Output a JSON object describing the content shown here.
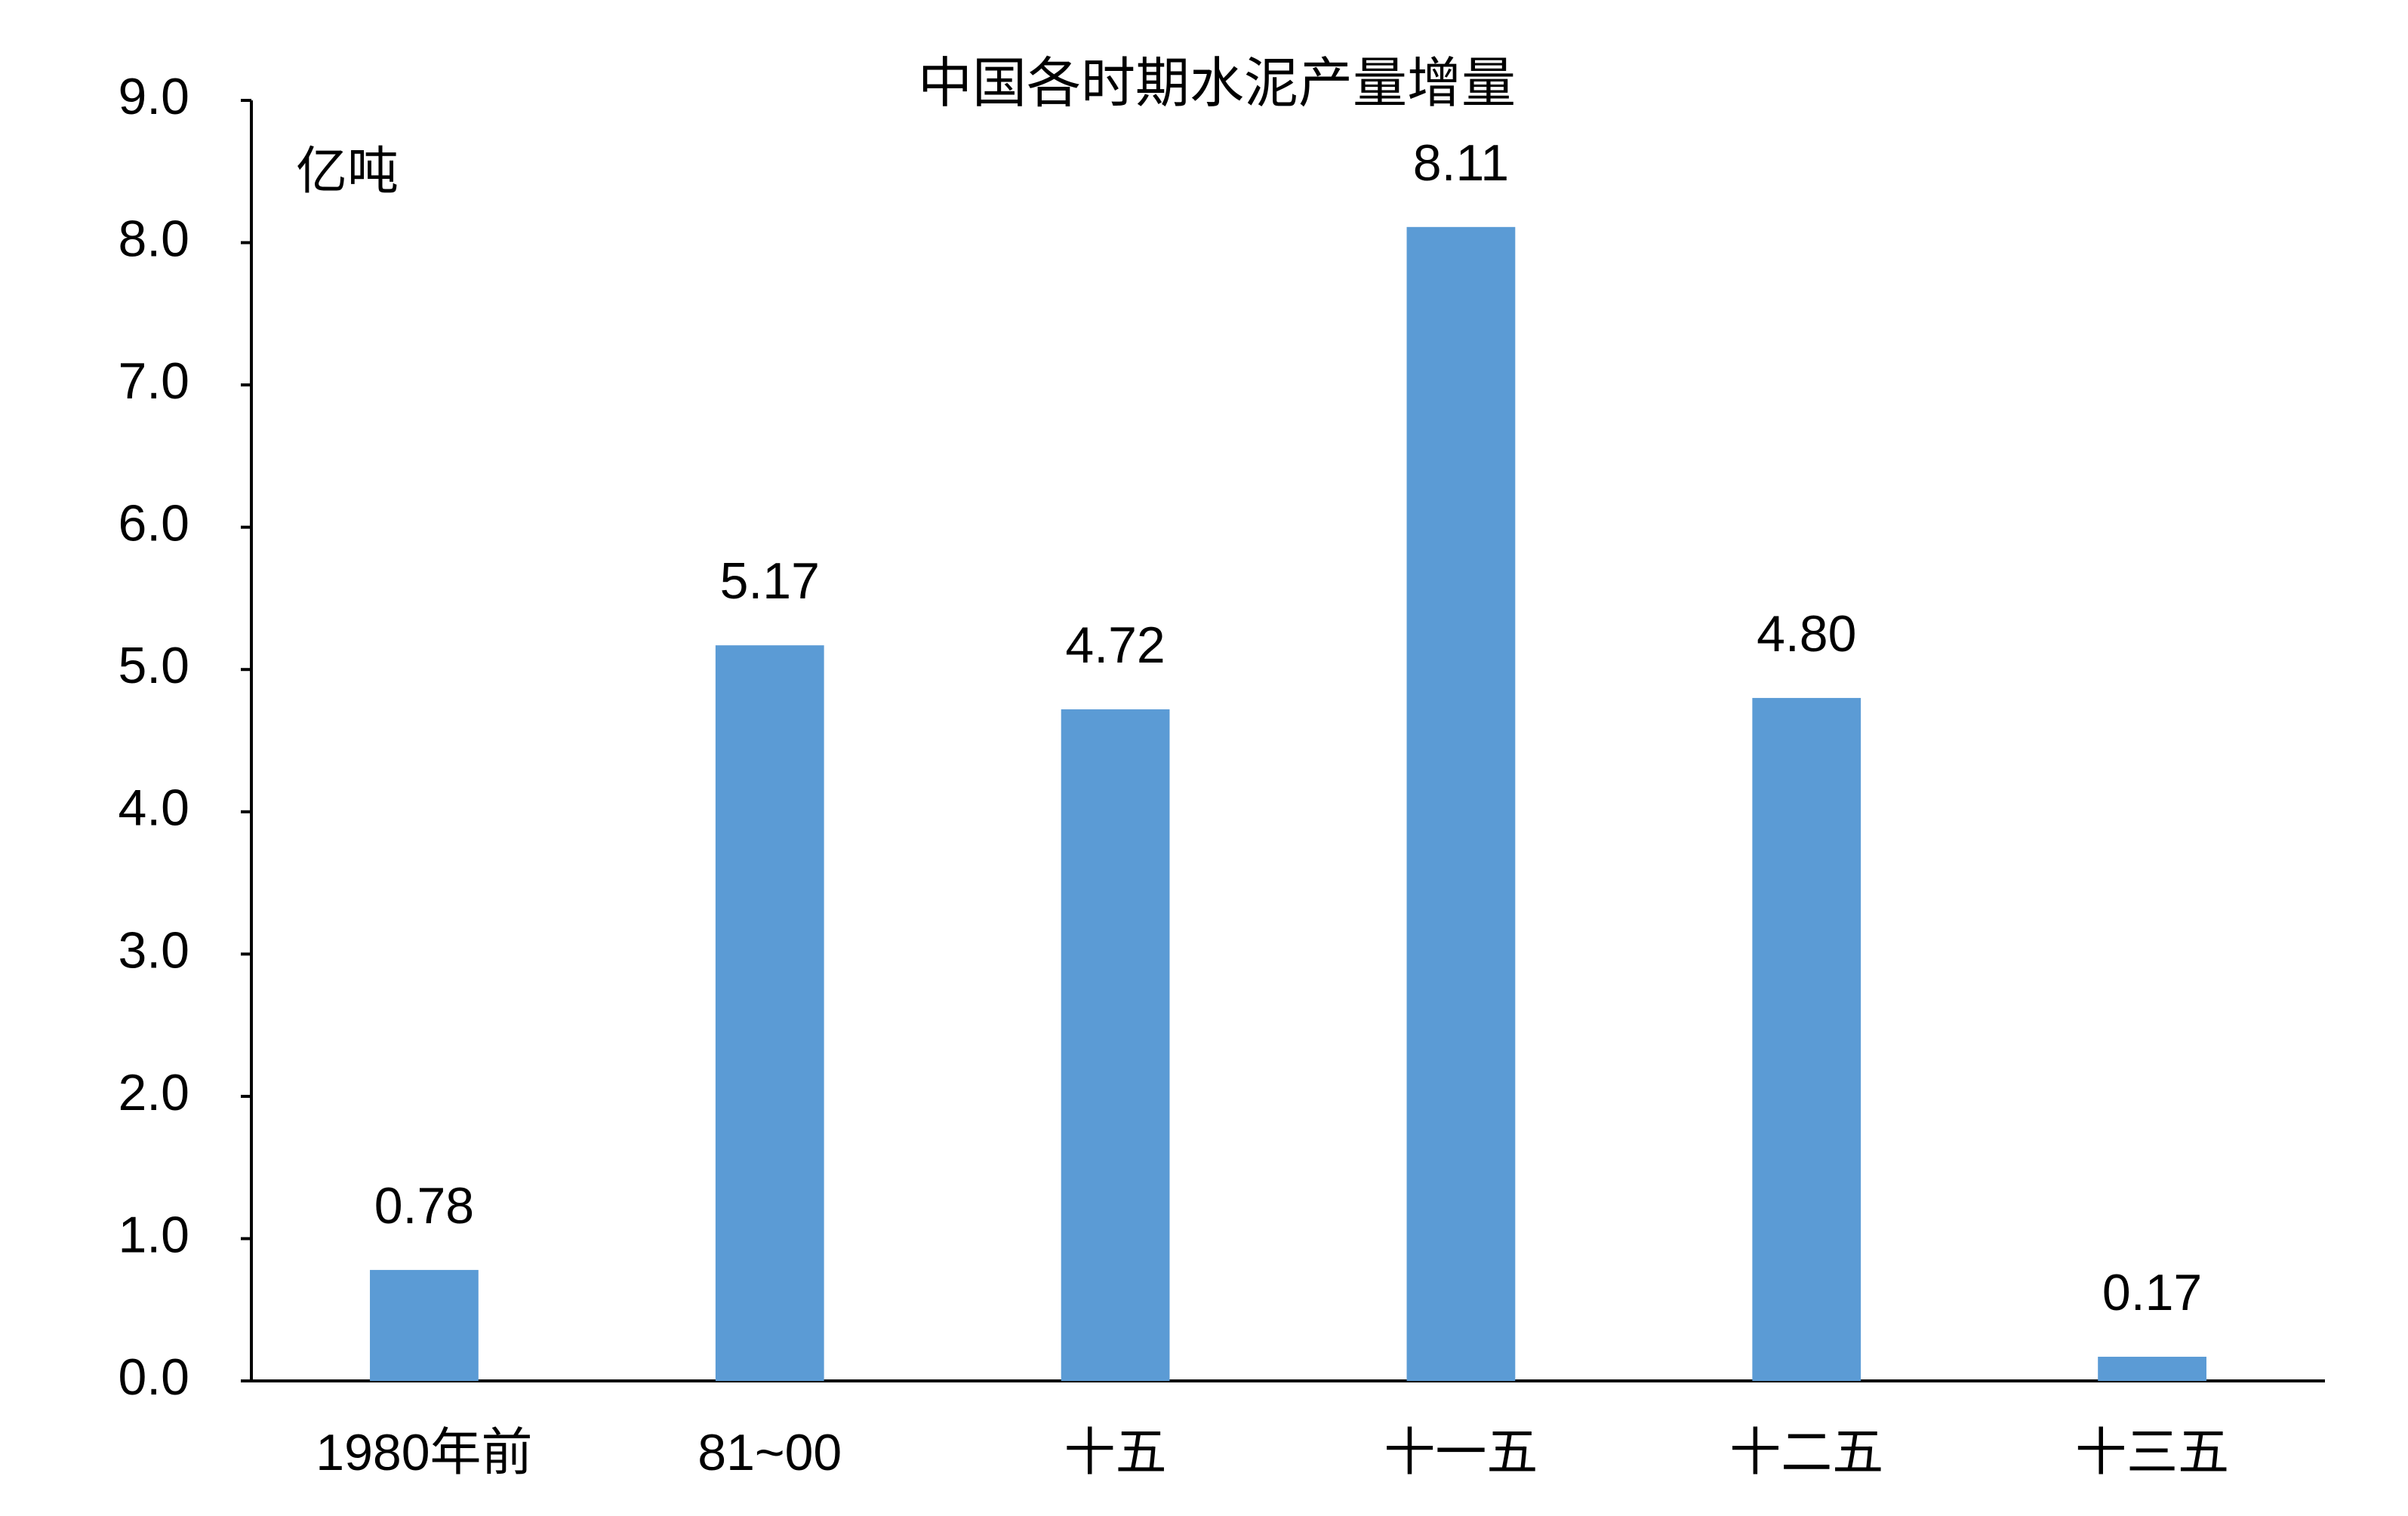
{
  "chart_data": {
    "type": "bar",
    "title": "中国各时期水泥产量增量",
    "y_label": "亿吨",
    "categories": [
      "1980年前",
      "81~00",
      "十五",
      "十一五",
      "十二五",
      "十三五"
    ],
    "values": [
      0.78,
      5.17,
      4.72,
      8.11,
      4.8,
      0.17
    ],
    "value_labels": [
      "0.78",
      "5.17",
      "4.72",
      "8.11",
      "4.80",
      "0.17"
    ],
    "color": "#5b9bd5",
    "ylim": [
      0,
      9
    ],
    "yticks": [
      {
        "value": 0,
        "label": "0.0"
      },
      {
        "value": 1,
        "label": "1.0"
      },
      {
        "value": 2,
        "label": "2.0"
      },
      {
        "value": 3,
        "label": "3.0"
      },
      {
        "value": 4,
        "label": "4.0"
      },
      {
        "value": 5,
        "label": "5.0"
      },
      {
        "value": 6,
        "label": "6.0"
      },
      {
        "value": 7,
        "label": "7.0"
      },
      {
        "value": 8,
        "label": "8.0"
      },
      {
        "value": 9,
        "label": "9.0"
      }
    ],
    "grid": false
  }
}
